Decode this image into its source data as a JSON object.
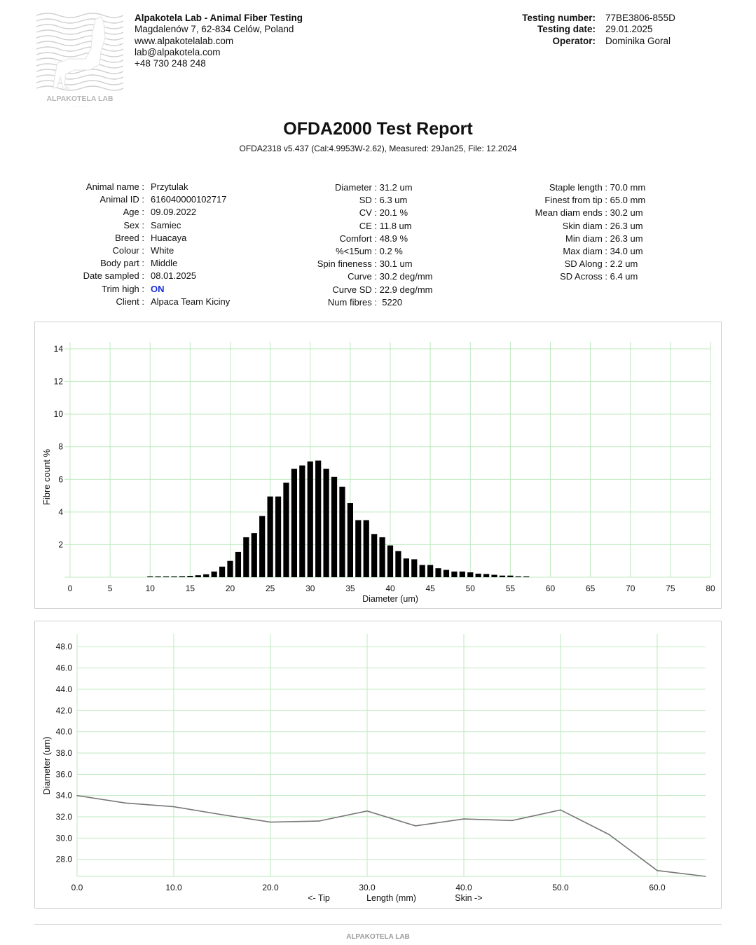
{
  "header": {
    "logo_text": "ALPAKOTELA LAB",
    "lab_name": "Alpakotela Lab - Animal Fiber Testing",
    "address": "Magdalenów 7, 62-834 Celów, Poland",
    "website": "www.alpakotelalab.com",
    "email": "lab@alpakotela.com",
    "phone": "+48 730 248 248",
    "testing": [
      {
        "label": "Testing number:",
        "value": "77BE3806-855D"
      },
      {
        "label": "Testing date:",
        "value": "29.01.2025"
      },
      {
        "label": "Operator:",
        "value": "Dominika Goral"
      }
    ]
  },
  "report": {
    "title": "OFDA2000 Test Report",
    "subtitle": "OFDA2318 v5.437 (Cal:4.9953W-2.62), Measured: 29Jan25, File: 12.2024"
  },
  "animal": [
    {
      "label": "Animal name :",
      "value": "Przytulak"
    },
    {
      "label": "Animal ID :",
      "value": "616040000102717"
    },
    {
      "label": "Age :",
      "value": "09.09.2022"
    },
    {
      "label": "Sex :",
      "value": "Samiec"
    },
    {
      "label": "Breed :",
      "value": "Huacaya"
    },
    {
      "label": "Colour :",
      "value": "White"
    },
    {
      "label": "Body part :",
      "value": "Middle"
    },
    {
      "label": "Date sampled :",
      "value": "08.01.2025"
    },
    {
      "label": "Trim high :",
      "value": "ON"
    },
    {
      "label": "Client :",
      "value": "Alpaca Team Kiciny"
    }
  ],
  "fibre_stats": [
    {
      "label": "Diameter :",
      "value": " 31.2 um"
    },
    {
      "label": "SD :",
      "value": " 6.3 um"
    },
    {
      "label": "CV :",
      "value": " 20.1 %"
    },
    {
      "label": "CE :",
      "value": " 11.8 um"
    },
    {
      "label": "Comfort :",
      "value": " 48.9 %"
    },
    {
      "label": "%<15um :",
      "value": " 0.2 %"
    },
    {
      "label": "Spin fineness :",
      "value": " 30.1 um"
    },
    {
      "label": "Curve :",
      "value": " 30.2 deg/mm"
    },
    {
      "label": "Curve SD :",
      "value": " 22.9 deg/mm"
    },
    {
      "label": "Num fibres :",
      "value": "  5220"
    }
  ],
  "staple_stats": [
    {
      "label": "Staple length :",
      "value": " 70.0 mm"
    },
    {
      "label": "Finest from tip :",
      "value": " 65.0 mm"
    },
    {
      "label": "Mean diam ends :",
      "value": " 30.2 um"
    },
    {
      "label": "Skin diam :",
      "value": " 26.3 um"
    },
    {
      "label": "Min diam :",
      "value": " 26.3 um"
    },
    {
      "label": "Max diam :",
      "value": " 34.0 um"
    },
    {
      "label": "SD Along :",
      "value": " 2.2 um"
    },
    {
      "label": "SD Across :",
      "value": " 6.4 um"
    }
  ],
  "chart_data": [
    {
      "type": "bar",
      "xlabel": "Diameter (um)",
      "ylabel": "Fibre count %",
      "xlim": [
        0,
        80
      ],
      "ylim": [
        0,
        14
      ],
      "xticks": [
        "0",
        "5",
        "10",
        "15",
        "20",
        "25",
        "30",
        "35",
        "40",
        "45",
        "50",
        "55",
        "60",
        "65",
        "70",
        "75",
        "80"
      ],
      "yticks": [
        "2",
        "4",
        "6",
        "8",
        "10",
        "12",
        "14"
      ],
      "grid": true,
      "color": "#000000",
      "x": [
        10,
        11,
        12,
        13,
        14,
        15,
        16,
        17,
        18,
        19,
        20,
        21,
        22,
        23,
        24,
        25,
        26,
        27,
        28,
        29,
        30,
        31,
        32,
        33,
        34,
        35,
        36,
        37,
        38,
        39,
        40,
        41,
        42,
        43,
        44,
        45,
        46,
        47,
        48,
        49,
        50,
        51,
        52,
        53,
        54,
        55,
        56,
        57
      ],
      "values": [
        0.02,
        0.03,
        0.03,
        0.04,
        0.06,
        0.08,
        0.12,
        0.18,
        0.35,
        0.65,
        1.0,
        1.55,
        2.45,
        2.7,
        3.75,
        4.95,
        4.95,
        5.8,
        6.65,
        6.85,
        7.1,
        7.15,
        6.65,
        6.15,
        5.55,
        4.55,
        3.5,
        3.5,
        2.65,
        2.45,
        1.95,
        1.6,
        1.15,
        1.1,
        0.75,
        0.75,
        0.55,
        0.45,
        0.35,
        0.35,
        0.3,
        0.22,
        0.2,
        0.15,
        0.1,
        0.1,
        0.05,
        0.04
      ]
    },
    {
      "type": "line",
      "xlabel": "Length (mm)",
      "xlabel_left": "<- Tip",
      "xlabel_right": "Skin ->",
      "ylabel": "Diameter (um)",
      "xlim": [
        0,
        65
      ],
      "ylim": [
        26.4,
        49.2
      ],
      "xticks": [
        "0.0",
        "10.0",
        "20.0",
        "30.0",
        "40.0",
        "50.0",
        "60.0"
      ],
      "yticks": [
        "28.0",
        "30.0",
        "32.0",
        "34.0",
        "36.0",
        "38.0",
        "40.0",
        "42.0",
        "44.0",
        "46.0",
        "48.0"
      ],
      "grid": true,
      "color": "#777777",
      "x": [
        0,
        5,
        10,
        15,
        20,
        25,
        30,
        35,
        40,
        45,
        50,
        55,
        60,
        65
      ],
      "values": [
        34.0,
        33.3,
        32.95,
        32.2,
        31.5,
        31.6,
        32.55,
        31.15,
        31.8,
        31.65,
        32.65,
        30.35,
        26.95,
        26.4
      ]
    }
  ],
  "footer": {
    "text": "ALPAKOTELA LAB"
  }
}
